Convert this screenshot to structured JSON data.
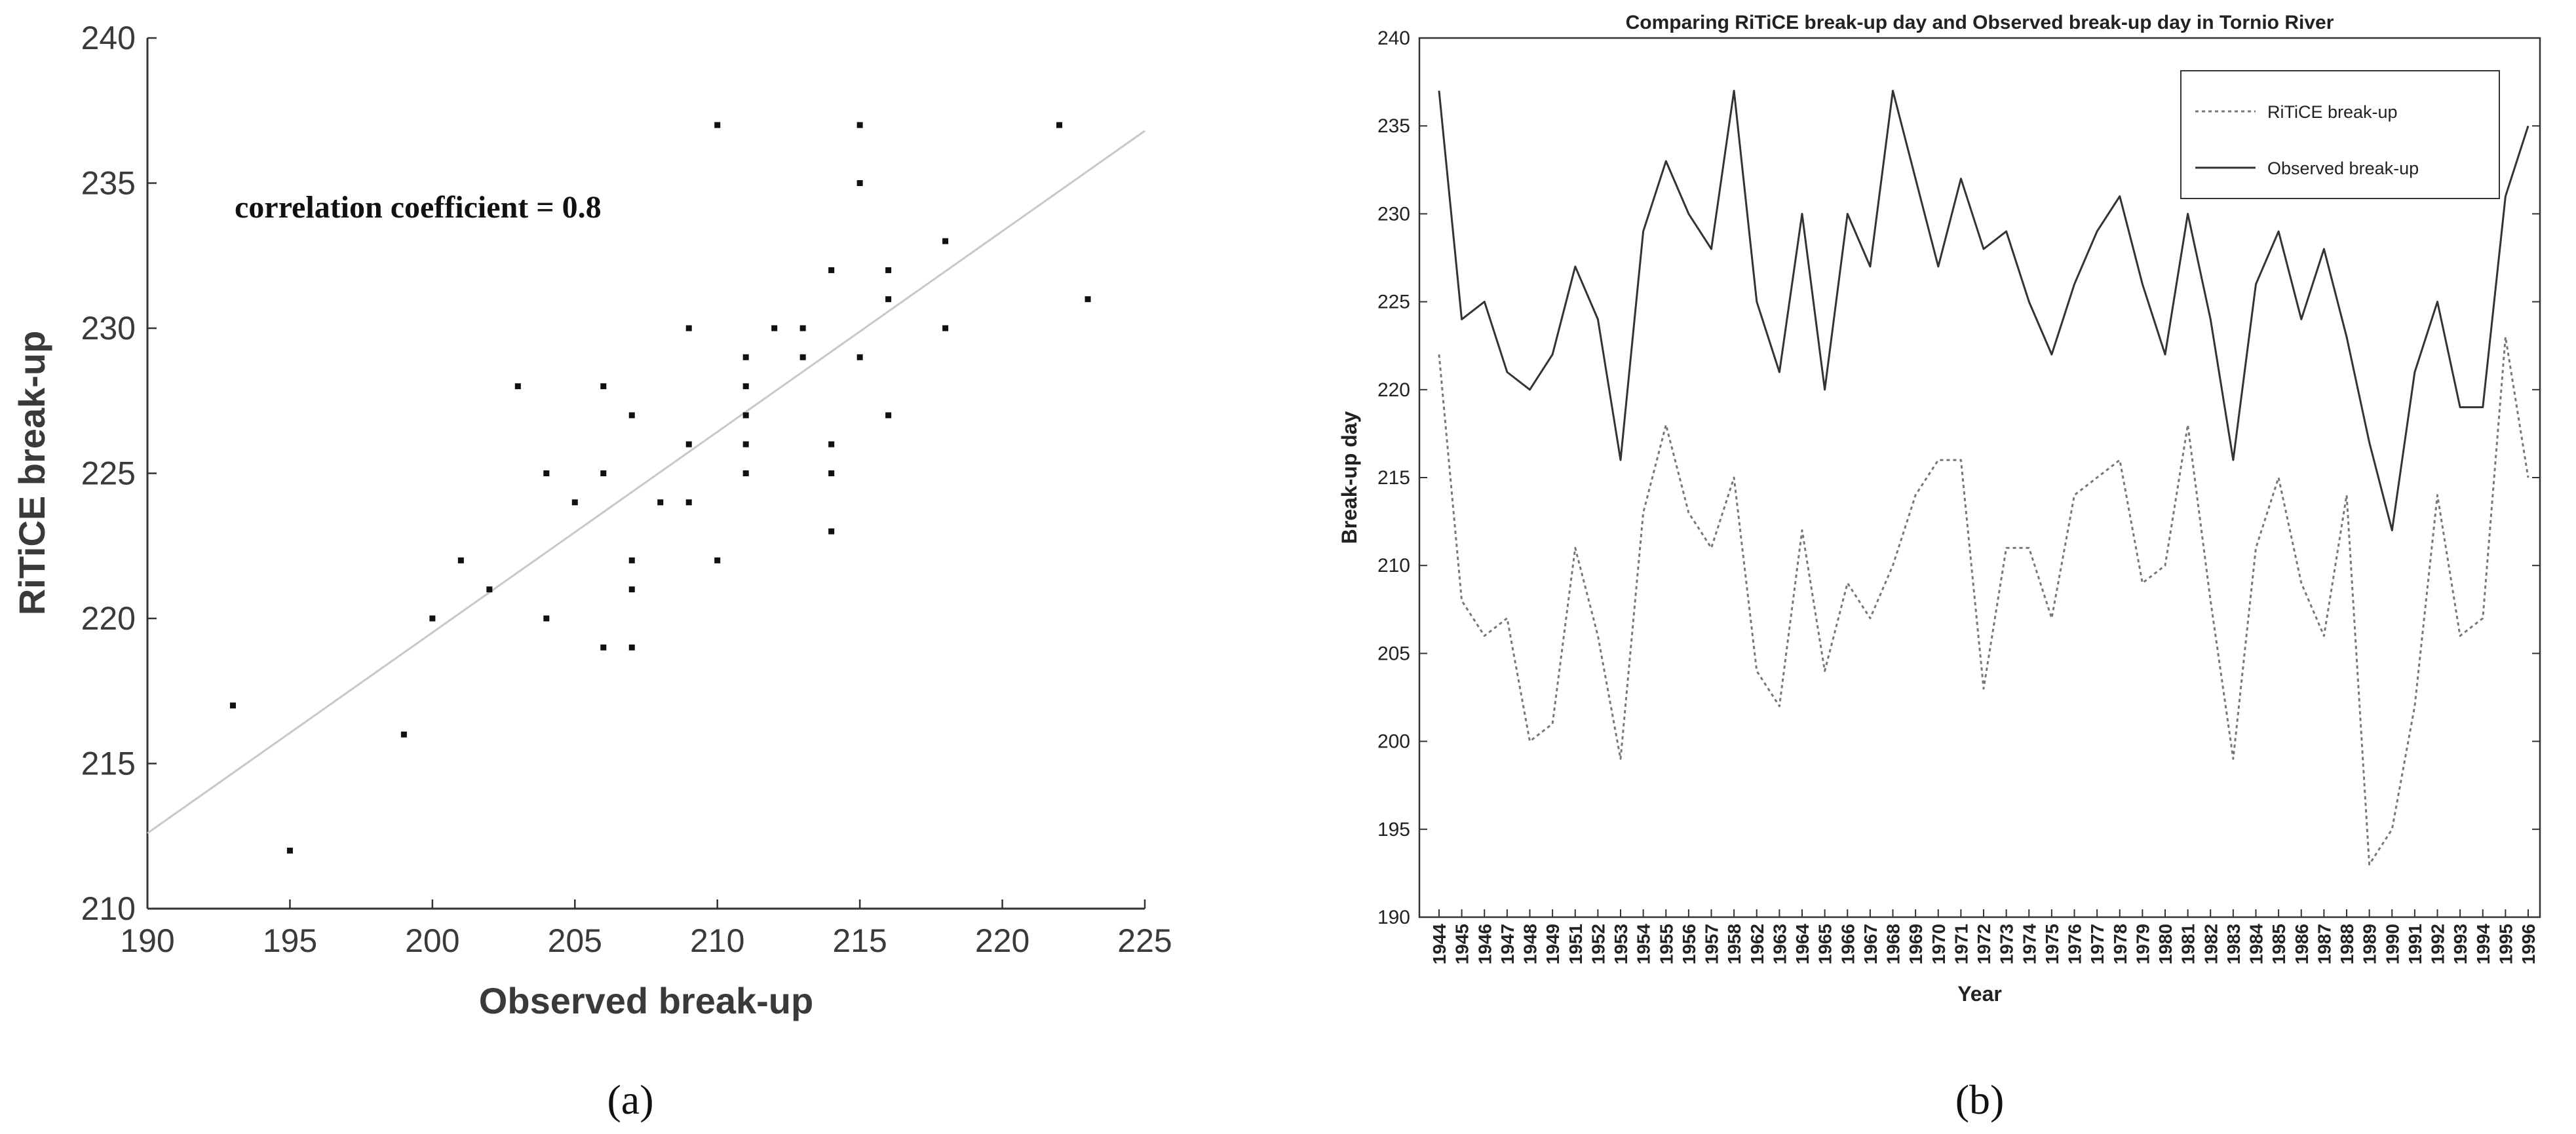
{
  "chart_data": [
    {
      "type": "scatter",
      "panel_label": "(a)",
      "xlabel": "Observed break-up",
      "ylabel": "RiTiCE break-up",
      "xlim": [
        190,
        225
      ],
      "ylim": [
        210,
        240
      ],
      "x_ticks": [
        190,
        195,
        200,
        205,
        210,
        215,
        220,
        225
      ],
      "y_ticks": [
        210,
        215,
        220,
        225,
        230,
        235,
        240
      ],
      "annotation": "correlation coefficient = 0.8",
      "grid": false,
      "trendline": {
        "x": [
          190,
          225
        ],
        "y": [
          212.6,
          236.8
        ]
      },
      "points": [
        [
          193,
          217
        ],
        [
          195,
          212
        ],
        [
          199,
          216
        ],
        [
          200,
          220
        ],
        [
          201,
          222
        ],
        [
          202,
          221
        ],
        [
          203,
          228
        ],
        [
          204,
          225
        ],
        [
          204,
          220
        ],
        [
          205,
          224
        ],
        [
          206,
          228
        ],
        [
          206,
          225
        ],
        [
          206,
          219
        ],
        [
          207,
          227
        ],
        [
          207,
          222
        ],
        [
          207,
          221
        ],
        [
          207,
          219
        ],
        [
          208,
          224
        ],
        [
          209,
          230
        ],
        [
          209,
          226
        ],
        [
          209,
          224
        ],
        [
          210,
          237
        ],
        [
          210,
          222
        ],
        [
          211,
          229
        ],
        [
          211,
          228
        ],
        [
          211,
          227
        ],
        [
          211,
          226
        ],
        [
          211,
          225
        ],
        [
          212,
          230
        ],
        [
          213,
          230
        ],
        [
          213,
          229
        ],
        [
          214,
          232
        ],
        [
          214,
          226
        ],
        [
          214,
          225
        ],
        [
          214,
          223
        ],
        [
          215,
          237
        ],
        [
          215,
          235
        ],
        [
          215,
          229
        ],
        [
          216,
          232
        ],
        [
          216,
          231
        ],
        [
          216,
          227
        ],
        [
          218,
          233
        ],
        [
          218,
          230
        ],
        [
          222,
          237
        ],
        [
          223,
          231
        ]
      ]
    },
    {
      "type": "line",
      "panel_label": "(b)",
      "title": "Comparing RiTiCE break-up day and Observed break-up day in Tornio River",
      "xlabel": "Year",
      "ylabel": "Break-up day",
      "ylim": [
        190,
        240
      ],
      "y_ticks": [
        190,
        195,
        200,
        205,
        210,
        215,
        220,
        225,
        230,
        235,
        240
      ],
      "legend_position": "top-right",
      "grid": false,
      "categories": [
        "1944",
        "1945",
        "1946",
        "1947",
        "1948",
        "1949",
        "1951",
        "1952",
        "1953",
        "1954",
        "1955",
        "1956",
        "1957",
        "1958",
        "1962",
        "1963",
        "1964",
        "1965",
        "1966",
        "1967",
        "1968",
        "1969",
        "1970",
        "1971",
        "1972",
        "1973",
        "1974",
        "1975",
        "1976",
        "1977",
        "1978",
        "1979",
        "1980",
        "1981",
        "1982",
        "1983",
        "1984",
        "1985",
        "1986",
        "1987",
        "1988",
        "1989",
        "1990",
        "1991",
        "1992",
        "1993",
        "1994",
        "1995",
        "1996"
      ],
      "series": [
        {
          "name": "RiTiCE break-up",
          "style": "dotted",
          "color": "#777777",
          "values": [
            222,
            208,
            206,
            207,
            200,
            201,
            211,
            206,
            199,
            213,
            218,
            213,
            211,
            215,
            204,
            202,
            212,
            204,
            209,
            207,
            210,
            214,
            216,
            216,
            203,
            211,
            211,
            207,
            214,
            215,
            216,
            209,
            210,
            218,
            208,
            199,
            211,
            215,
            209,
            206,
            214,
            193,
            195,
            202,
            214,
            206,
            207,
            223,
            215
          ]
        },
        {
          "name": "Observed break-up",
          "style": "solid",
          "color": "#333333",
          "values": [
            237,
            224,
            225,
            221,
            220,
            222,
            227,
            224,
            216,
            229,
            233,
            230,
            228,
            237,
            225,
            221,
            230,
            220,
            230,
            227,
            237,
            232,
            227,
            232,
            228,
            229,
            225,
            222,
            226,
            229,
            231,
            226,
            222,
            230,
            224,
            216,
            226,
            229,
            224,
            228,
            223,
            217,
            212,
            221,
            225,
            219,
            219,
            231,
            235
          ]
        }
      ]
    }
  ]
}
